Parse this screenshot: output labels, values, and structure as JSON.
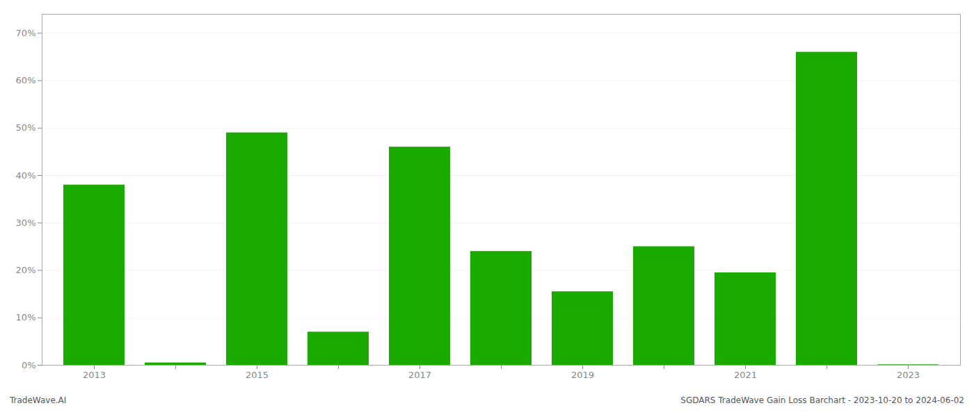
{
  "chart_data": {
    "type": "bar",
    "categories": [
      "2013",
      null,
      "2015",
      null,
      "2017",
      null,
      "2019",
      null,
      "2021",
      null,
      "2023"
    ],
    "values": [
      0.38,
      0.005,
      0.49,
      0.07,
      0.46,
      0.24,
      0.155,
      0.25,
      0.195,
      0.66,
      0.001
    ],
    "color": "#1aaa00",
    "ylim": [
      0,
      0.74
    ],
    "yticks": [
      {
        "value": 0.0,
        "label": "0%"
      },
      {
        "value": 0.1,
        "label": "10%"
      },
      {
        "value": 0.2,
        "label": "20%"
      },
      {
        "value": 0.3,
        "label": "30%"
      },
      {
        "value": 0.4,
        "label": "40%"
      },
      {
        "value": 0.5,
        "label": "50%"
      },
      {
        "value": 0.6,
        "label": "60%"
      },
      {
        "value": 0.7,
        "label": "70%"
      }
    ],
    "grid": true,
    "annotations": [
      "TradeWave.AI",
      "SGDARS TradeWave Gain Loss Barchart - 2023-10-20 to 2024-06-02"
    ]
  }
}
